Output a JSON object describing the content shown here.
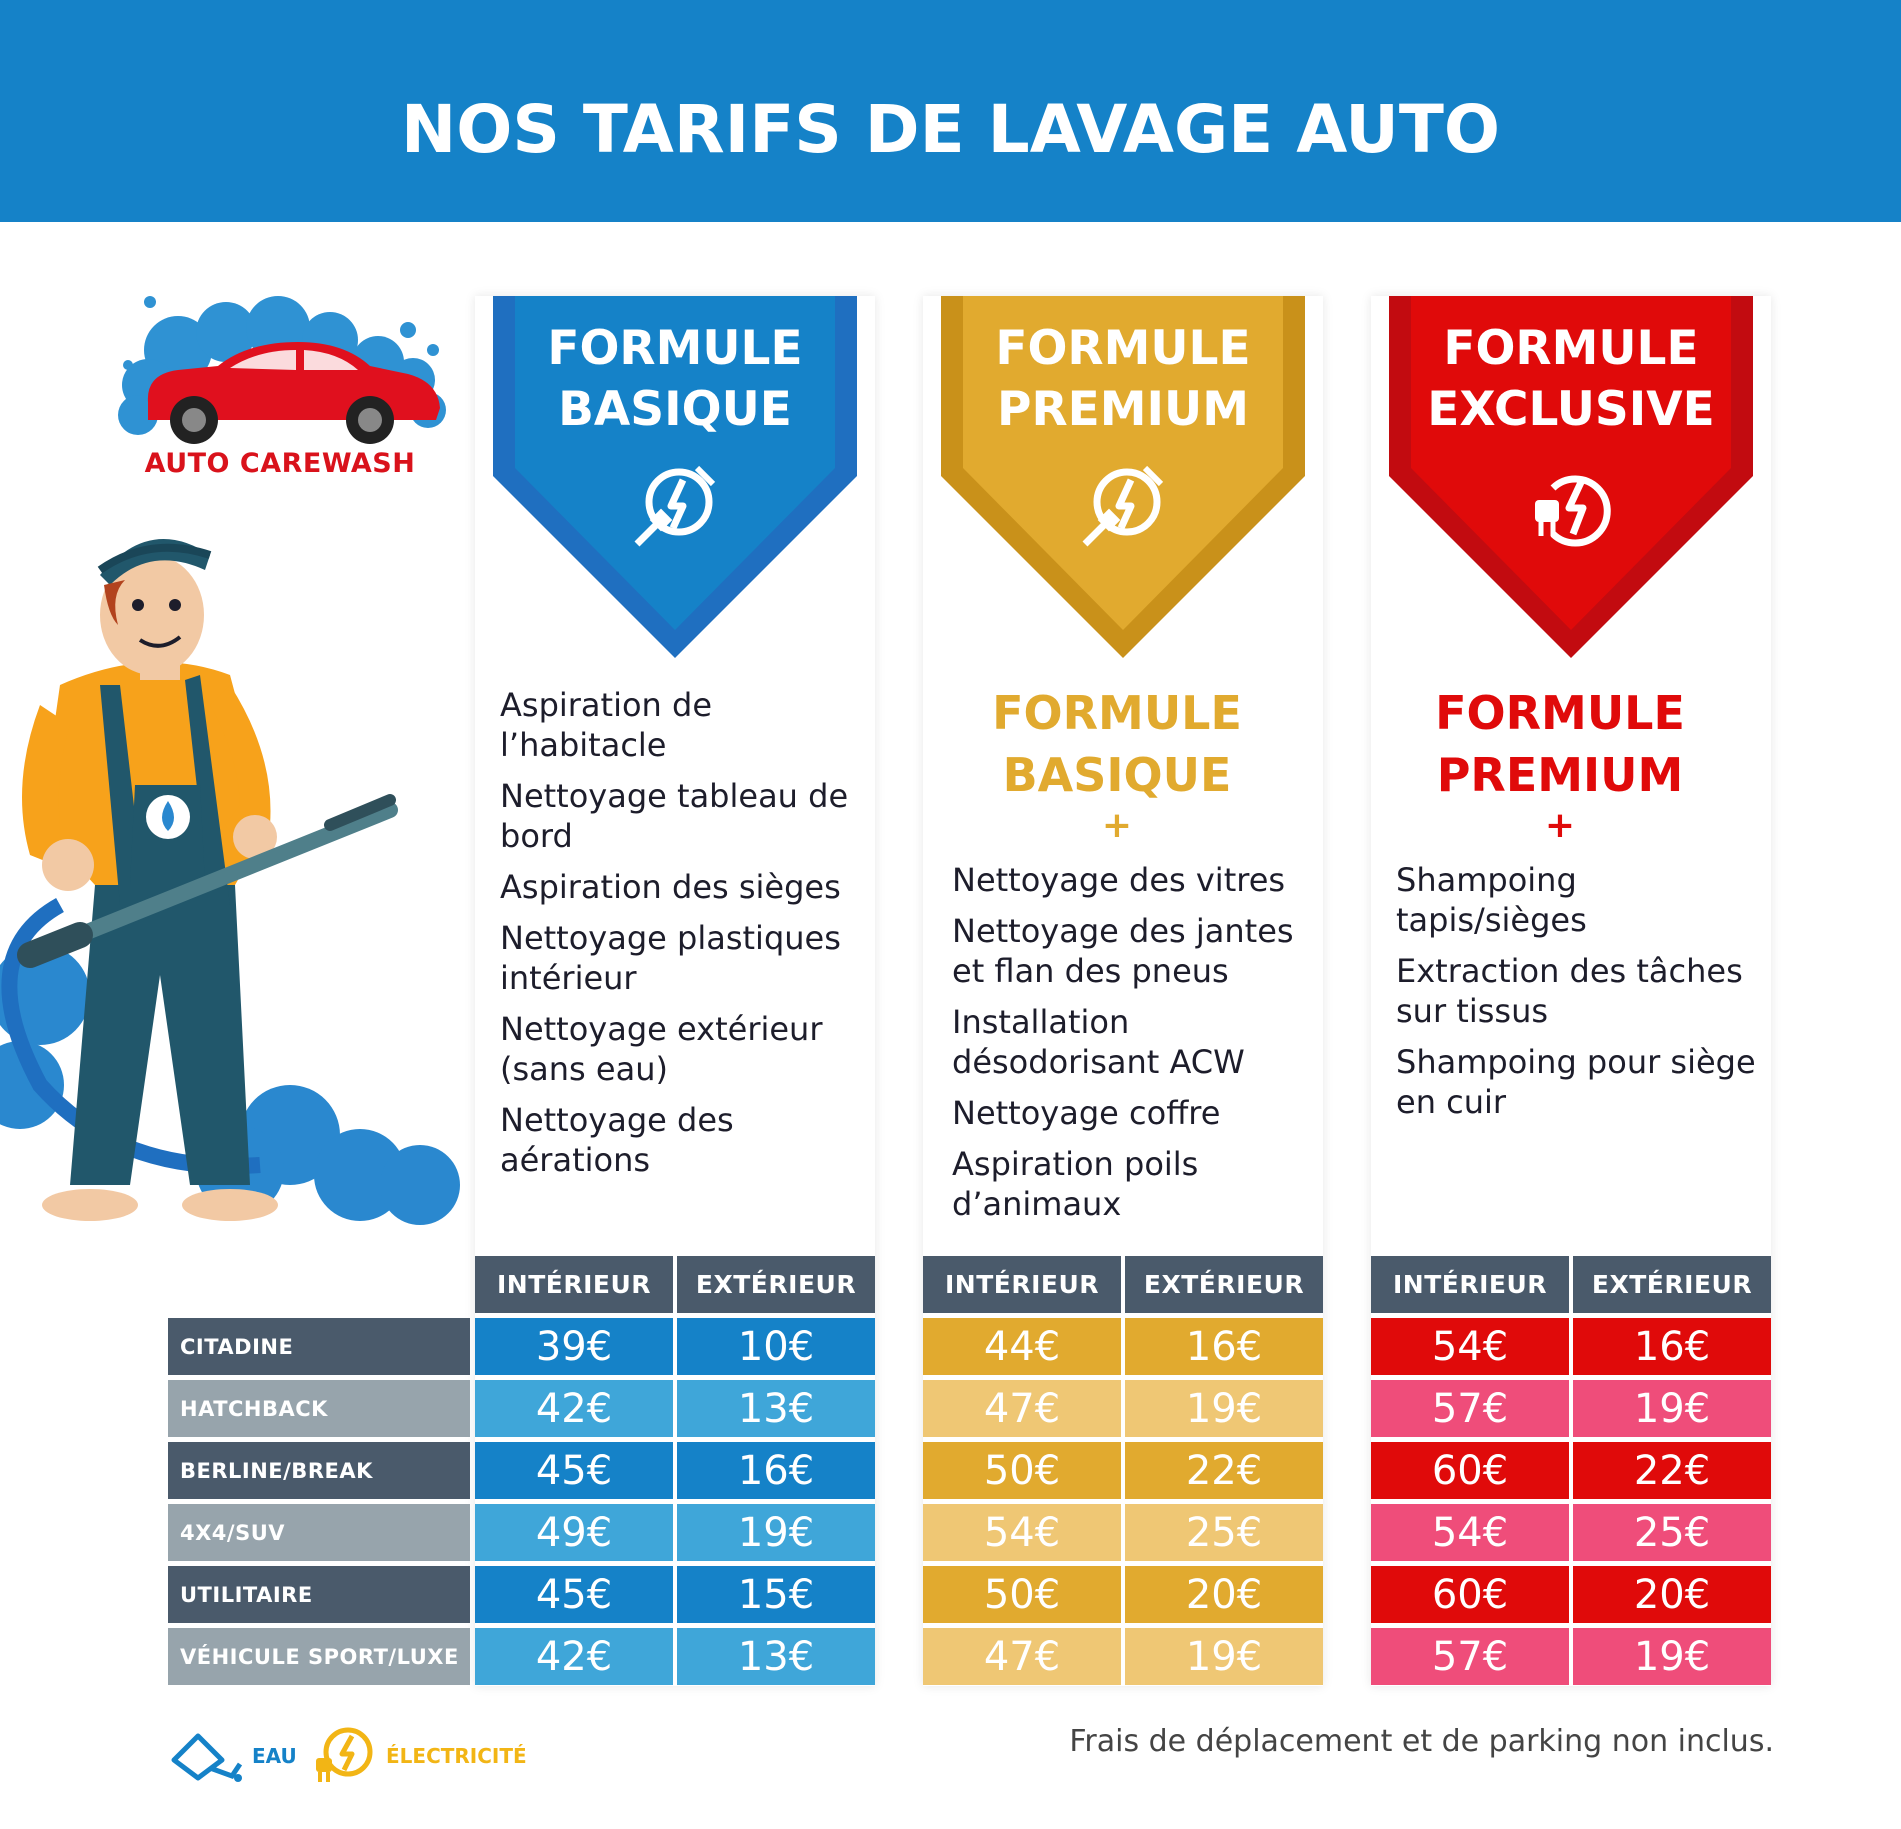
{
  "header": {
    "title": "NOS TARIFS DE LAVAGE AUTO"
  },
  "brand": {
    "name": "AUTO CAREWASH",
    "color": "#d9121b"
  },
  "colors": {
    "blue": "#1582c8",
    "blue_light": "#3fa6d9",
    "gold": "#e1aa2f",
    "gold_light": "#efc774",
    "red": "#e00a0a",
    "pink": "#ef4d7a",
    "header_dark": "#4a5a6b",
    "label_light": "#97a4ac"
  },
  "columns": [
    {
      "title_line1": "FORMULE",
      "title_line2": "BASIQUE",
      "icon": "eau-electricite-icon"
    },
    {
      "title_line1": "FORMULE",
      "title_line2": "PREMIUM",
      "icon": "eau-electricite-icon",
      "includes_line1": "FORMULE",
      "includes_line2": "BASIQUE",
      "plus": "+"
    },
    {
      "title_line1": "FORMULE",
      "title_line2": "EXCLUSIVE",
      "icon": "electricite-icon",
      "includes_line1": "FORMULE",
      "includes_line2": "PREMIUM",
      "plus": "+"
    }
  ],
  "features": {
    "basique": [
      "Aspiration de l’habitacle",
      "Nettoyage tableau de bord",
      "Aspiration des sièges",
      "Nettoyage plastiques intérieur",
      "Nettoyage extérieur (sans eau)",
      "Nettoyage des aérations"
    ],
    "premium": [
      "Nettoyage des vitres",
      "Nettoyage des jantes et flan des pneus",
      "Installation désodorisant ACW",
      "Nettoyage coffre",
      "Aspiration poils d’animaux"
    ],
    "exclusive": [
      "Shampoing tapis/sièges",
      "Extraction des tâches sur tissus",
      "Shampoing pour siège en cuir"
    ]
  },
  "table": {
    "headers": [
      "INTÉRIEUR",
      "EXTÉRIEUR"
    ],
    "rows": [
      "CITADINE",
      "HATCHBACK",
      "BERLINE/BREAK",
      "4X4/SUV",
      "UTILITAIRE",
      "VÉHICULE SPORT/LUXE"
    ],
    "basique": [
      [
        "39€",
        "10€"
      ],
      [
        "42€",
        "13€"
      ],
      [
        "45€",
        "16€"
      ],
      [
        "49€",
        "19€"
      ],
      [
        "45€",
        "15€"
      ],
      [
        "42€",
        "13€"
      ]
    ],
    "premium": [
      [
        "44€",
        "16€"
      ],
      [
        "47€",
        "19€"
      ],
      [
        "50€",
        "22€"
      ],
      [
        "54€",
        "25€"
      ],
      [
        "50€",
        "20€"
      ],
      [
        "47€",
        "19€"
      ]
    ],
    "exclusive": [
      [
        "54€",
        "16€"
      ],
      [
        "57€",
        "19€"
      ],
      [
        "60€",
        "22€"
      ],
      [
        "54€",
        "25€"
      ],
      [
        "60€",
        "20€"
      ],
      [
        "57€",
        "19€"
      ]
    ]
  },
  "legend": {
    "eau": "EAU",
    "electricite": "ÉLECTRICITÉ"
  },
  "footnote": "Frais de déplacement et de parking non inclus."
}
